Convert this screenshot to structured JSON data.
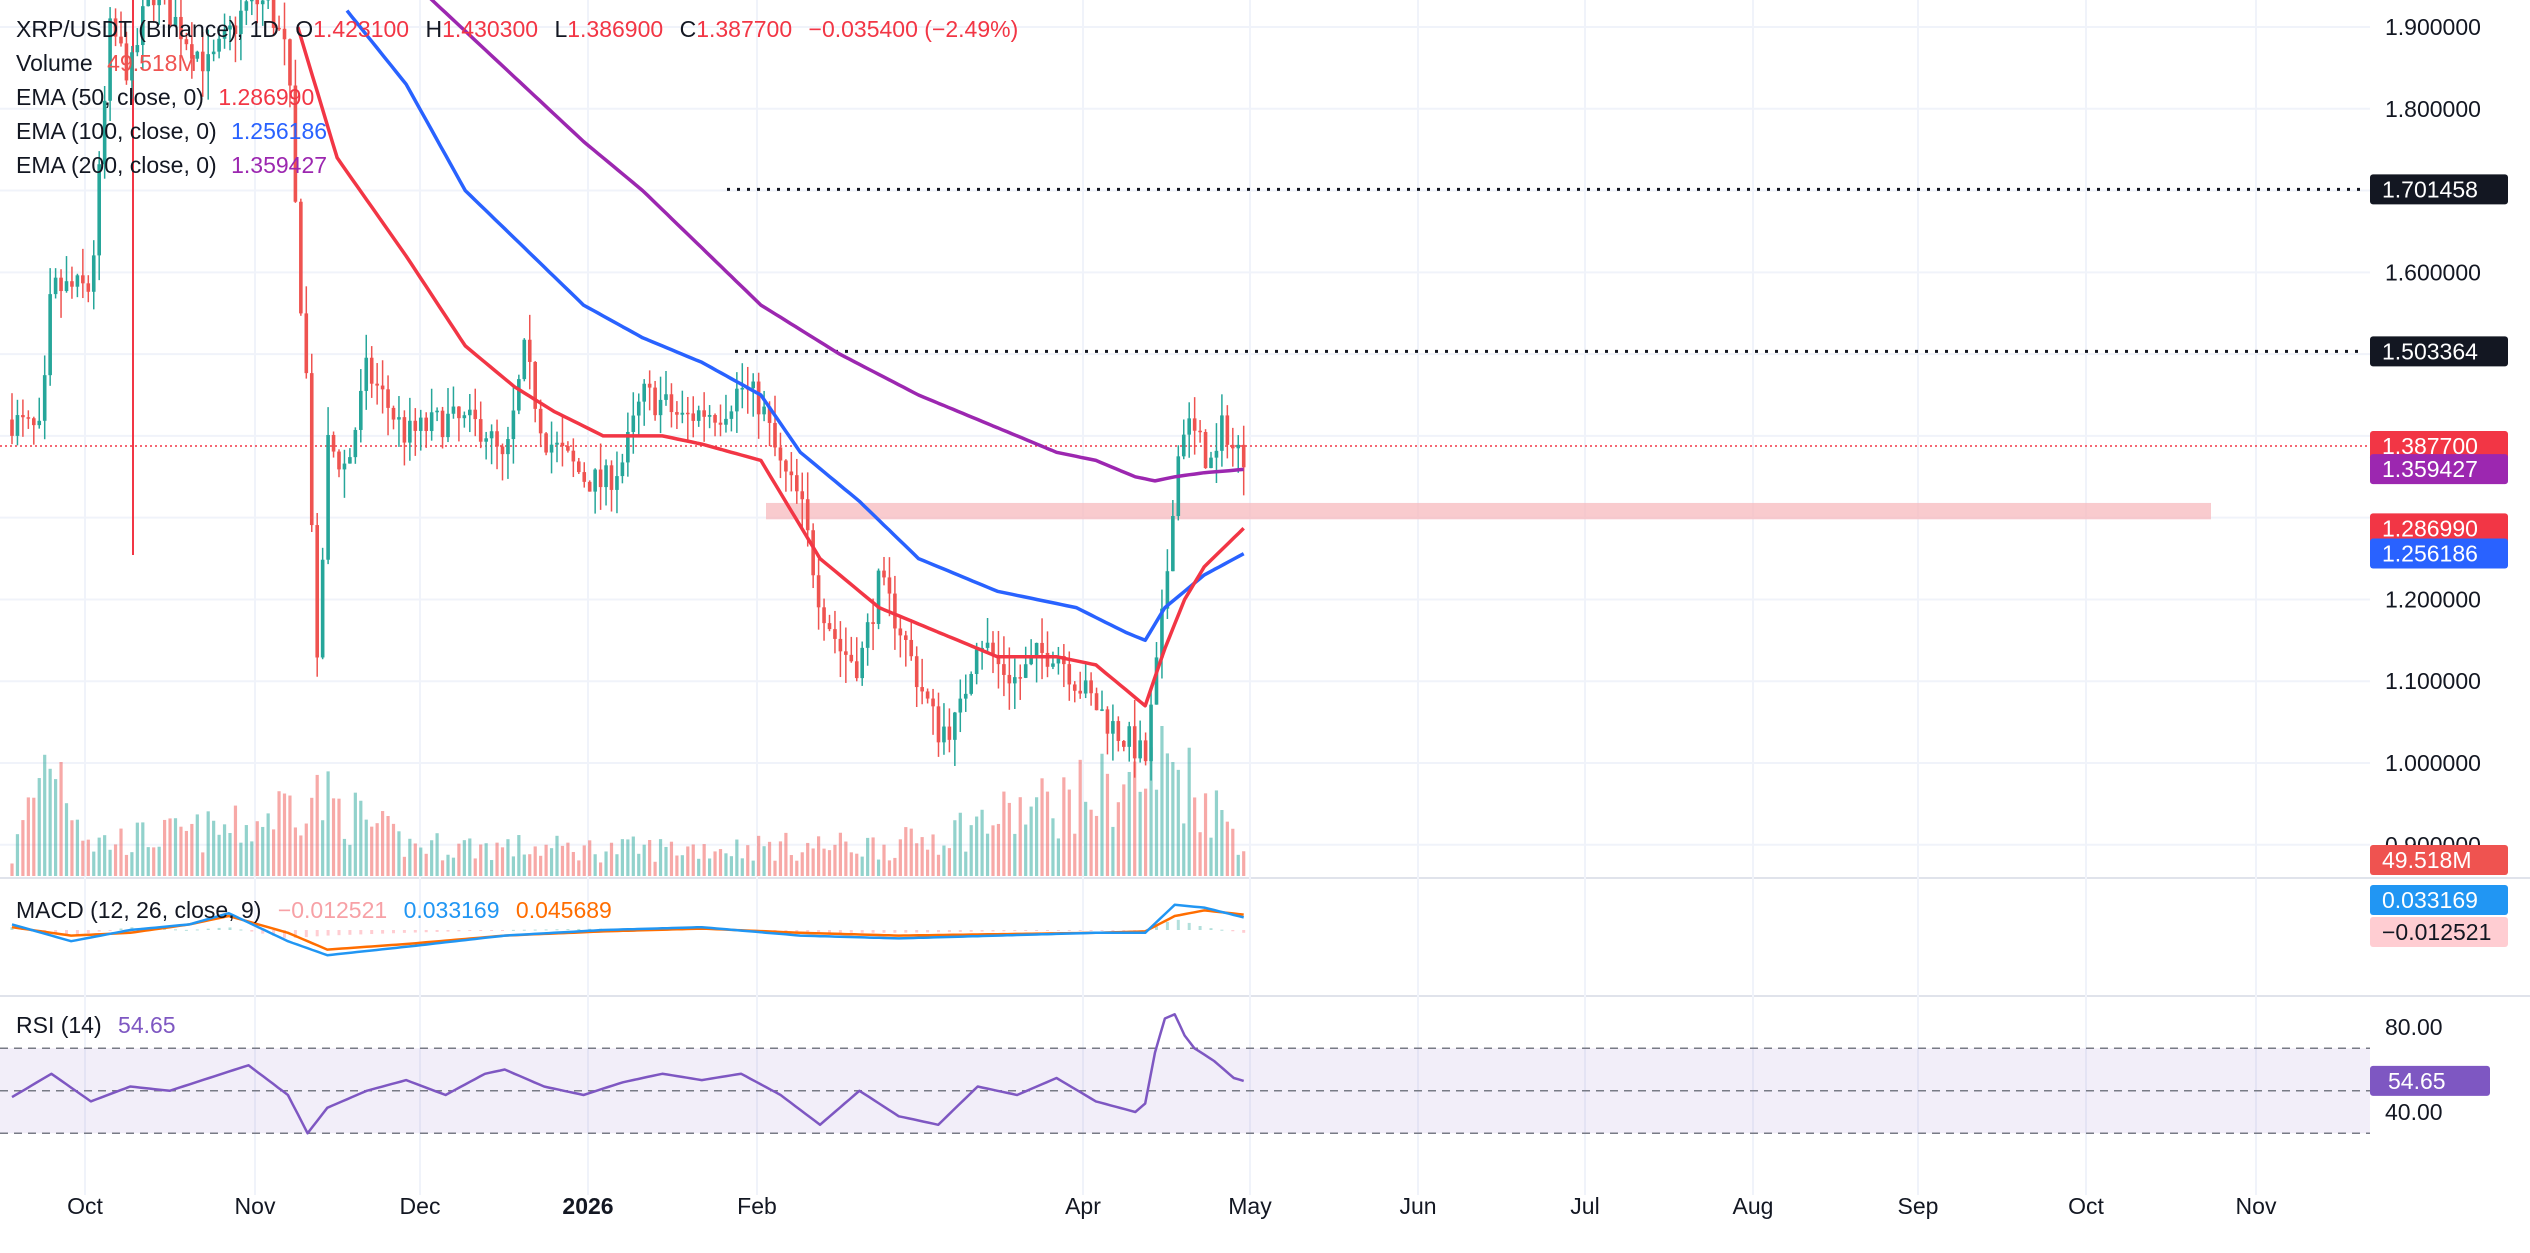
{
  "header": {
    "symbol": "XRP/USDT (Binance), 1D",
    "o_label": "O",
    "o": "1.423100",
    "h_label": "H",
    "h": "1.430300",
    "l_label": "L",
    "l": "1.386900",
    "c_label": "C",
    "c": "1.387700",
    "change": "−0.035400 (−2.49%)",
    "volume_label": "Volume",
    "volume": "49.518M",
    "ema50_label": "EMA (50, close, 0)",
    "ema50": "1.286990",
    "ema100_label": "EMA (100, close, 0)",
    "ema100": "1.256186",
    "ema200_label": "EMA (200, close, 0)",
    "ema200": "1.359427"
  },
  "macd": {
    "label": "MACD (12, 26, close, 9)",
    "hist": "−0.012521",
    "macd": "0.033169",
    "signal": "0.045689"
  },
  "rsi": {
    "label": "RSI (14)",
    "value": "54.65"
  },
  "colors": {
    "up": "#26a69a",
    "down": "#ef5350",
    "ema50": "#f23645",
    "ema100": "#2962ff",
    "ema200": "#9c27b0",
    "macd": "#2196f3",
    "signal": "#ff6d00",
    "rsi": "#7e57c2",
    "zone": "#f7b9bd",
    "grid": "#f0f3fa",
    "text": "#131722"
  },
  "chart_data": {
    "type": "candlestick",
    "symbol": "XRP/USDT",
    "exchange": "Binance",
    "interval": "1D",
    "y_axis_ticks": [
      "1.900000",
      "1.800000",
      "1.600000",
      "1.200000",
      "1.100000",
      "1.000000",
      "0.900000"
    ],
    "y_axis_tick_values": [
      1.9,
      1.8,
      1.6,
      1.2,
      1.1,
      1.0,
      0.9
    ],
    "ylim": [
      0.86,
      1.95
    ],
    "x_axis_labels": [
      "Oct",
      "Nov",
      "Dec",
      "2026",
      "Feb",
      "Apr",
      "May",
      "Jun",
      "Jul",
      "Aug",
      "Sep",
      "Oct",
      "Nov"
    ],
    "price_labels": [
      {
        "text": "1.701458",
        "value": 1.701458,
        "style": "resistance"
      },
      {
        "text": "1.503364",
        "value": 1.503364,
        "style": "resistance"
      },
      {
        "text": "1.387700",
        "value": 1.3877,
        "style": "last"
      },
      {
        "text": "1.359427",
        "value": 1.359427,
        "style": "ema200"
      },
      {
        "text": "1.286990",
        "value": 1.28699,
        "style": "ema50"
      },
      {
        "text": "1.256186",
        "value": 1.256186,
        "style": "ema100"
      },
      {
        "text": "49.518M",
        "value": 49.518,
        "style": "volume"
      }
    ],
    "support_zone": [
      1.298,
      1.318
    ],
    "price_path": [
      [
        0,
        1.42
      ],
      [
        3,
        1.4
      ],
      [
        4,
        1.58
      ],
      [
        8,
        1.58
      ],
      [
        10,
        1.9
      ],
      [
        12,
        1.84
      ],
      [
        14,
        1.95
      ],
      [
        20,
        1.85
      ],
      [
        24,
        1.93
      ],
      [
        26,
        1.93
      ],
      [
        28,
        1.86
      ],
      [
        29,
        1.62
      ],
      [
        30,
        1.45
      ],
      [
        31,
        1.1
      ],
      [
        32,
        1.39
      ],
      [
        34,
        1.36
      ],
      [
        36,
        1.48
      ],
      [
        40,
        1.4
      ],
      [
        44,
        1.42
      ],
      [
        48,
        1.41
      ],
      [
        50,
        1.36
      ],
      [
        52,
        1.5
      ],
      [
        54,
        1.4
      ],
      [
        58,
        1.35
      ],
      [
        60,
        1.34
      ],
      [
        62,
        1.37
      ],
      [
        64,
        1.45
      ],
      [
        66,
        1.44
      ],
      [
        68,
        1.42
      ],
      [
        70,
        1.43
      ],
      [
        72,
        1.43
      ],
      [
        74,
        1.46
      ],
      [
        76,
        1.44
      ],
      [
        78,
        1.36
      ],
      [
        80,
        1.32
      ],
      [
        82,
        1.2
      ],
      [
        84,
        1.14
      ],
      [
        86,
        1.12
      ],
      [
        88,
        1.22
      ],
      [
        90,
        1.17
      ],
      [
        92,
        1.1
      ],
      [
        94,
        1.04
      ],
      [
        96,
        1.05
      ],
      [
        98,
        1.16
      ],
      [
        100,
        1.12
      ],
      [
        102,
        1.1
      ],
      [
        104,
        1.13
      ],
      [
        106,
        1.14
      ],
      [
        108,
        1.1
      ],
      [
        110,
        1.07
      ],
      [
        112,
        1.04
      ],
      [
        114,
        1.02
      ],
      [
        115,
        1.0
      ],
      [
        116,
        1.1
      ],
      [
        117,
        1.2
      ],
      [
        118,
        1.35
      ],
      [
        119,
        1.42
      ],
      [
        120,
        1.4
      ],
      [
        121,
        1.38
      ],
      [
        122,
        1.36
      ],
      [
        123,
        1.42
      ],
      [
        124,
        1.38
      ],
      [
        125,
        1.38
      ]
    ],
    "volume_path": [
      [
        0,
        8
      ],
      [
        4,
        60
      ],
      [
        8,
        15
      ],
      [
        24,
        22
      ],
      [
        30,
        38
      ],
      [
        31,
        36
      ],
      [
        40,
        14
      ],
      [
        60,
        12
      ],
      [
        90,
        14
      ],
      [
        116,
        45
      ],
      [
        117,
        55
      ],
      [
        125,
        16
      ]
    ],
    "ema50_path": [
      [
        29,
        1.9
      ],
      [
        33,
        1.74
      ],
      [
        40,
        1.62
      ],
      [
        46,
        1.51
      ],
      [
        51,
        1.46
      ],
      [
        55,
        1.43
      ],
      [
        60,
        1.4
      ],
      [
        66,
        1.4
      ],
      [
        70,
        1.39
      ],
      [
        76,
        1.37
      ],
      [
        82,
        1.25
      ],
      [
        88,
        1.19
      ],
      [
        94,
        1.16
      ],
      [
        100,
        1.13
      ],
      [
        106,
        1.13
      ],
      [
        110,
        1.12
      ],
      [
        115,
        1.07
      ],
      [
        117,
        1.14
      ],
      [
        119,
        1.2
      ],
      [
        121,
        1.24
      ],
      [
        125,
        1.287
      ]
    ],
    "ema100_path": [
      [
        34,
        1.92
      ],
      [
        40,
        1.83
      ],
      [
        46,
        1.7
      ],
      [
        52,
        1.63
      ],
      [
        58,
        1.56
      ],
      [
        64,
        1.52
      ],
      [
        70,
        1.49
      ],
      [
        76,
        1.45
      ],
      [
        80,
        1.38
      ],
      [
        86,
        1.32
      ],
      [
        92,
        1.25
      ],
      [
        100,
        1.21
      ],
      [
        108,
        1.19
      ],
      [
        113,
        1.16
      ],
      [
        115,
        1.15
      ],
      [
        117,
        1.19
      ],
      [
        119,
        1.21
      ],
      [
        121,
        1.23
      ],
      [
        125,
        1.256
      ]
    ],
    "ema200_path": [
      [
        42,
        1.94
      ],
      [
        50,
        1.85
      ],
      [
        58,
        1.76
      ],
      [
        64,
        1.7
      ],
      [
        70,
        1.63
      ],
      [
        76,
        1.56
      ],
      [
        84,
        1.5
      ],
      [
        92,
        1.45
      ],
      [
        100,
        1.41
      ],
      [
        106,
        1.38
      ],
      [
        110,
        1.37
      ],
      [
        114,
        1.35
      ],
      [
        116,
        1.345
      ],
      [
        118,
        1.35
      ],
      [
        121,
        1.355
      ],
      [
        125,
        1.359
      ]
    ],
    "macd_path": [
      [
        0,
        0.2
      ],
      [
        6,
        -0.4
      ],
      [
        12,
        0.0
      ],
      [
        18,
        0.2
      ],
      [
        22,
        0.6
      ],
      [
        28,
        -0.4
      ],
      [
        32,
        -0.9
      ],
      [
        40,
        -0.6
      ],
      [
        50,
        -0.2
      ],
      [
        60,
        0.0
      ],
      [
        70,
        0.1
      ],
      [
        80,
        -0.2
      ],
      [
        90,
        -0.3
      ],
      [
        100,
        -0.2
      ],
      [
        110,
        -0.1
      ],
      [
        115,
        -0.1
      ],
      [
        118,
        0.9
      ],
      [
        121,
        0.8
      ],
      [
        125,
        0.45
      ]
    ],
    "signal_path": [
      [
        0,
        0.1
      ],
      [
        6,
        -0.2
      ],
      [
        12,
        -0.1
      ],
      [
        18,
        0.2
      ],
      [
        22,
        0.5
      ],
      [
        28,
        -0.1
      ],
      [
        32,
        -0.7
      ],
      [
        40,
        -0.5
      ],
      [
        50,
        -0.2
      ],
      [
        60,
        -0.05
      ],
      [
        70,
        0.05
      ],
      [
        80,
        -0.1
      ],
      [
        90,
        -0.2
      ],
      [
        100,
        -0.15
      ],
      [
        110,
        -0.1
      ],
      [
        115,
        -0.05
      ],
      [
        118,
        0.5
      ],
      [
        121,
        0.7
      ],
      [
        125,
        0.55
      ]
    ],
    "rsi_path": [
      [
        0,
        47
      ],
      [
        4,
        58
      ],
      [
        8,
        45
      ],
      [
        12,
        52
      ],
      [
        16,
        50
      ],
      [
        20,
        56
      ],
      [
        24,
        62
      ],
      [
        28,
        48
      ],
      [
        30,
        30
      ],
      [
        32,
        42
      ],
      [
        36,
        50
      ],
      [
        40,
        55
      ],
      [
        44,
        48
      ],
      [
        48,
        58
      ],
      [
        50,
        60
      ],
      [
        54,
        52
      ],
      [
        58,
        48
      ],
      [
        62,
        54
      ],
      [
        66,
        58
      ],
      [
        70,
        55
      ],
      [
        74,
        58
      ],
      [
        78,
        48
      ],
      [
        82,
        34
      ],
      [
        86,
        50
      ],
      [
        90,
        38
      ],
      [
        94,
        34
      ],
      [
        98,
        52
      ],
      [
        102,
        48
      ],
      [
        106,
        56
      ],
      [
        110,
        45
      ],
      [
        114,
        40
      ],
      [
        115,
        44
      ],
      [
        116,
        68
      ],
      [
        117,
        84
      ],
      [
        118,
        86
      ],
      [
        119,
        76
      ],
      [
        120,
        70
      ],
      [
        122,
        64
      ],
      [
        124,
        56
      ],
      [
        125,
        54.65
      ]
    ],
    "rsi_ticks": [
      "80.00",
      "40.00"
    ],
    "rsi_levels": [
      70,
      50,
      30
    ]
  }
}
